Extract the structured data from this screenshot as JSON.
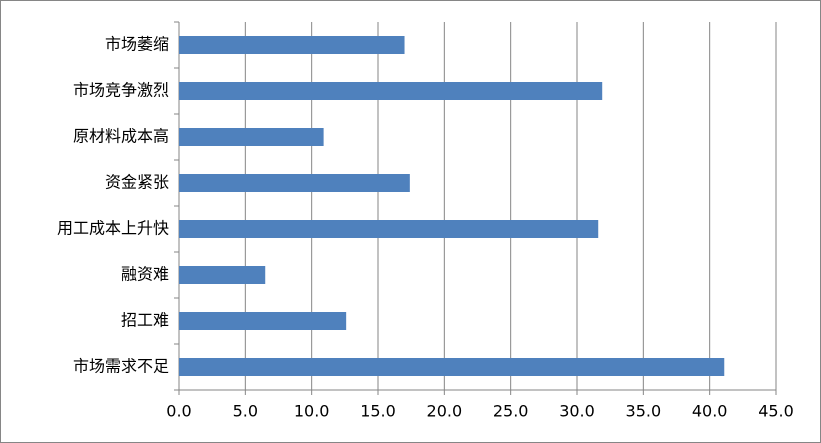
{
  "chart_data": {
    "type": "barh",
    "categories": [
      "市场萎缩",
      "市场竞争激烈",
      "原材料成本高",
      "资金紧张",
      "用工成本上升快",
      "融资难",
      "招工难",
      "市场需求不足"
    ],
    "values": [
      17.0,
      31.9,
      10.9,
      17.4,
      31.6,
      6.5,
      12.6,
      41.1
    ],
    "color": "#4f81bd",
    "xlim": [
      0,
      45
    ],
    "xticks": [
      {
        "value": 0,
        "label": "0.0"
      },
      {
        "value": 5,
        "label": "5.0"
      },
      {
        "value": 10,
        "label": "10.0"
      },
      {
        "value": 15,
        "label": "15.0"
      },
      {
        "value": 20,
        "label": "20.0"
      },
      {
        "value": 25,
        "label": "25.0"
      },
      {
        "value": 30,
        "label": "30.0"
      },
      {
        "value": 35,
        "label": "35.0"
      },
      {
        "value": 40,
        "label": "40.0"
      },
      {
        "value": 45,
        "label": "45.0"
      }
    ],
    "grid": true
  }
}
